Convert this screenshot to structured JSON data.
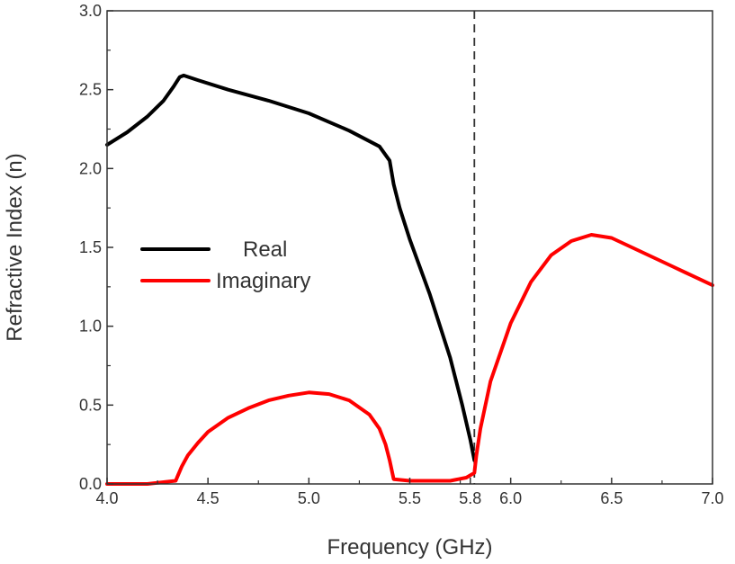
{
  "chart_data": {
    "type": "line",
    "xlabel": "Frequency (GHz)",
    "ylabel": "Refractive Index (n)",
    "xlim": [
      4.0,
      7.0
    ],
    "ylim": [
      0.0,
      3.0
    ],
    "x_ticks": [
      "4.0",
      "4.5",
      "5.0",
      "5.5",
      "5.8",
      "6.0",
      "6.5",
      "7.0"
    ],
    "y_ticks": [
      "0.0",
      "0.5",
      "1.0",
      "1.5",
      "2.0",
      "2.5",
      "3.0"
    ],
    "grid": false,
    "legend_position": "center-left",
    "annotations": [
      {
        "type": "vertical-dashed-line",
        "x": 5.82,
        "color": "#333333"
      }
    ],
    "series": [
      {
        "name": "Real",
        "color": "#000000",
        "x": [
          4.0,
          4.1,
          4.2,
          4.28,
          4.33,
          4.36,
          4.38,
          4.45,
          4.6,
          4.8,
          5.0,
          5.2,
          5.35,
          5.4,
          5.42,
          5.45,
          5.5,
          5.6,
          5.7,
          5.76,
          5.8,
          5.82
        ],
        "y": [
          2.15,
          2.23,
          2.33,
          2.43,
          2.52,
          2.58,
          2.59,
          2.56,
          2.5,
          2.43,
          2.35,
          2.24,
          2.14,
          2.05,
          1.9,
          1.75,
          1.55,
          1.2,
          0.8,
          0.5,
          0.28,
          0.15
        ]
      },
      {
        "name": "Imaginary",
        "color": "#ff0000",
        "x": [
          4.0,
          4.2,
          4.34,
          4.35,
          4.37,
          4.4,
          4.45,
          4.5,
          4.6,
          4.7,
          4.8,
          4.9,
          5.0,
          5.1,
          5.2,
          5.3,
          5.35,
          5.38,
          5.4,
          5.42,
          5.5,
          5.6,
          5.7,
          5.78,
          5.82,
          5.83,
          5.85,
          5.9,
          6.0,
          6.1,
          6.2,
          6.3,
          6.4,
          6.5,
          6.6,
          6.7,
          6.8,
          6.9,
          7.0
        ],
        "y": [
          0.0,
          0.0,
          0.02,
          0.05,
          0.11,
          0.18,
          0.26,
          0.33,
          0.42,
          0.48,
          0.53,
          0.56,
          0.58,
          0.57,
          0.53,
          0.44,
          0.35,
          0.25,
          0.15,
          0.03,
          0.02,
          0.02,
          0.02,
          0.04,
          0.07,
          0.18,
          0.35,
          0.65,
          1.02,
          1.28,
          1.45,
          1.54,
          1.58,
          1.56,
          1.5,
          1.44,
          1.38,
          1.32,
          1.26
        ]
      }
    ]
  }
}
